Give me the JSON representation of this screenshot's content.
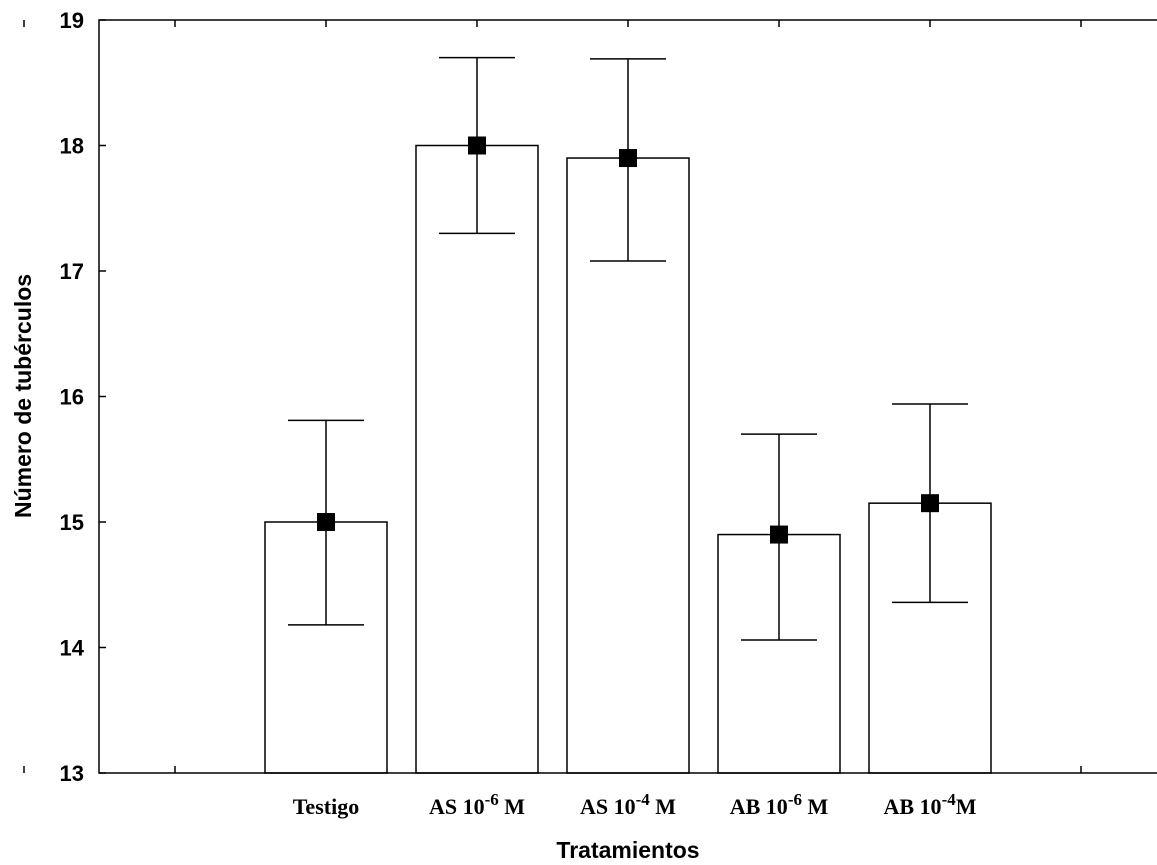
{
  "chart_data": {
    "type": "bar",
    "categories": [
      {
        "base": "Testigo",
        "sup": "",
        "suffix": ""
      },
      {
        "base": "AS 10",
        "sup": "-6",
        "suffix": " M"
      },
      {
        "base": "AS 10",
        "sup": "-4",
        "suffix": " M"
      },
      {
        "base": "AB 10",
        "sup": "-6",
        "suffix": " M"
      },
      {
        "base": "AB 10",
        "sup": "-4",
        "suffix": "M"
      }
    ],
    "values": [
      15.0,
      18.0,
      17.9,
      14.9,
      15.15
    ],
    "error_low": [
      14.18,
      17.3,
      17.08,
      14.06,
      14.36
    ],
    "error_high": [
      15.81,
      18.7,
      18.69,
      15.7,
      15.94
    ],
    "xlabel": "Tratamientos",
    "ylabel": "Número de tubérculos",
    "ylim": [
      13,
      19
    ],
    "yticks": [
      13,
      14,
      15,
      16,
      17,
      18,
      19
    ],
    "xticks_count": 8,
    "grid": false,
    "colors": {
      "bar_fill": "#ffffff",
      "stroke": "#000000",
      "marker": "#000000"
    }
  }
}
